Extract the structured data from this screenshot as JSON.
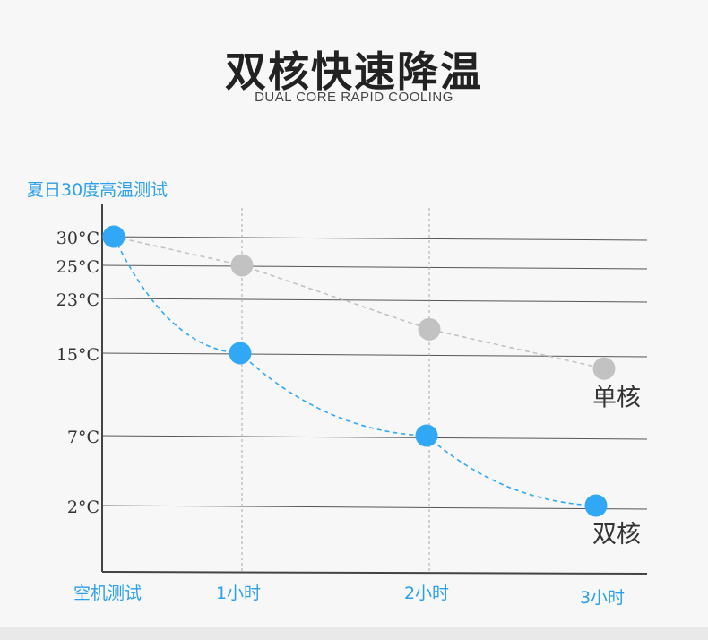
{
  "header": {
    "title": "双核快速降温",
    "subtitle": "DUAL CORE RAPID COOLING"
  },
  "chart_caption": "夏日30度高温测试",
  "chart_data": {
    "type": "line",
    "title": "夏日30度高温测试",
    "categories": [
      "空机测试",
      "1小时",
      "2小时",
      "3小时"
    ],
    "y_ticks": [
      "30°C",
      "25°C",
      "23°C",
      "15°C",
      "7°C",
      "2°C"
    ],
    "series": [
      {
        "name": "单核",
        "values": [
          30,
          25,
          18.5,
          13.5
        ],
        "color": "#c2c2c2"
      },
      {
        "name": "双核",
        "values": [
          30,
          15,
          7,
          2
        ],
        "color": "#30a8f5"
      }
    ],
    "grid": true,
    "line_style": "dashed"
  }
}
